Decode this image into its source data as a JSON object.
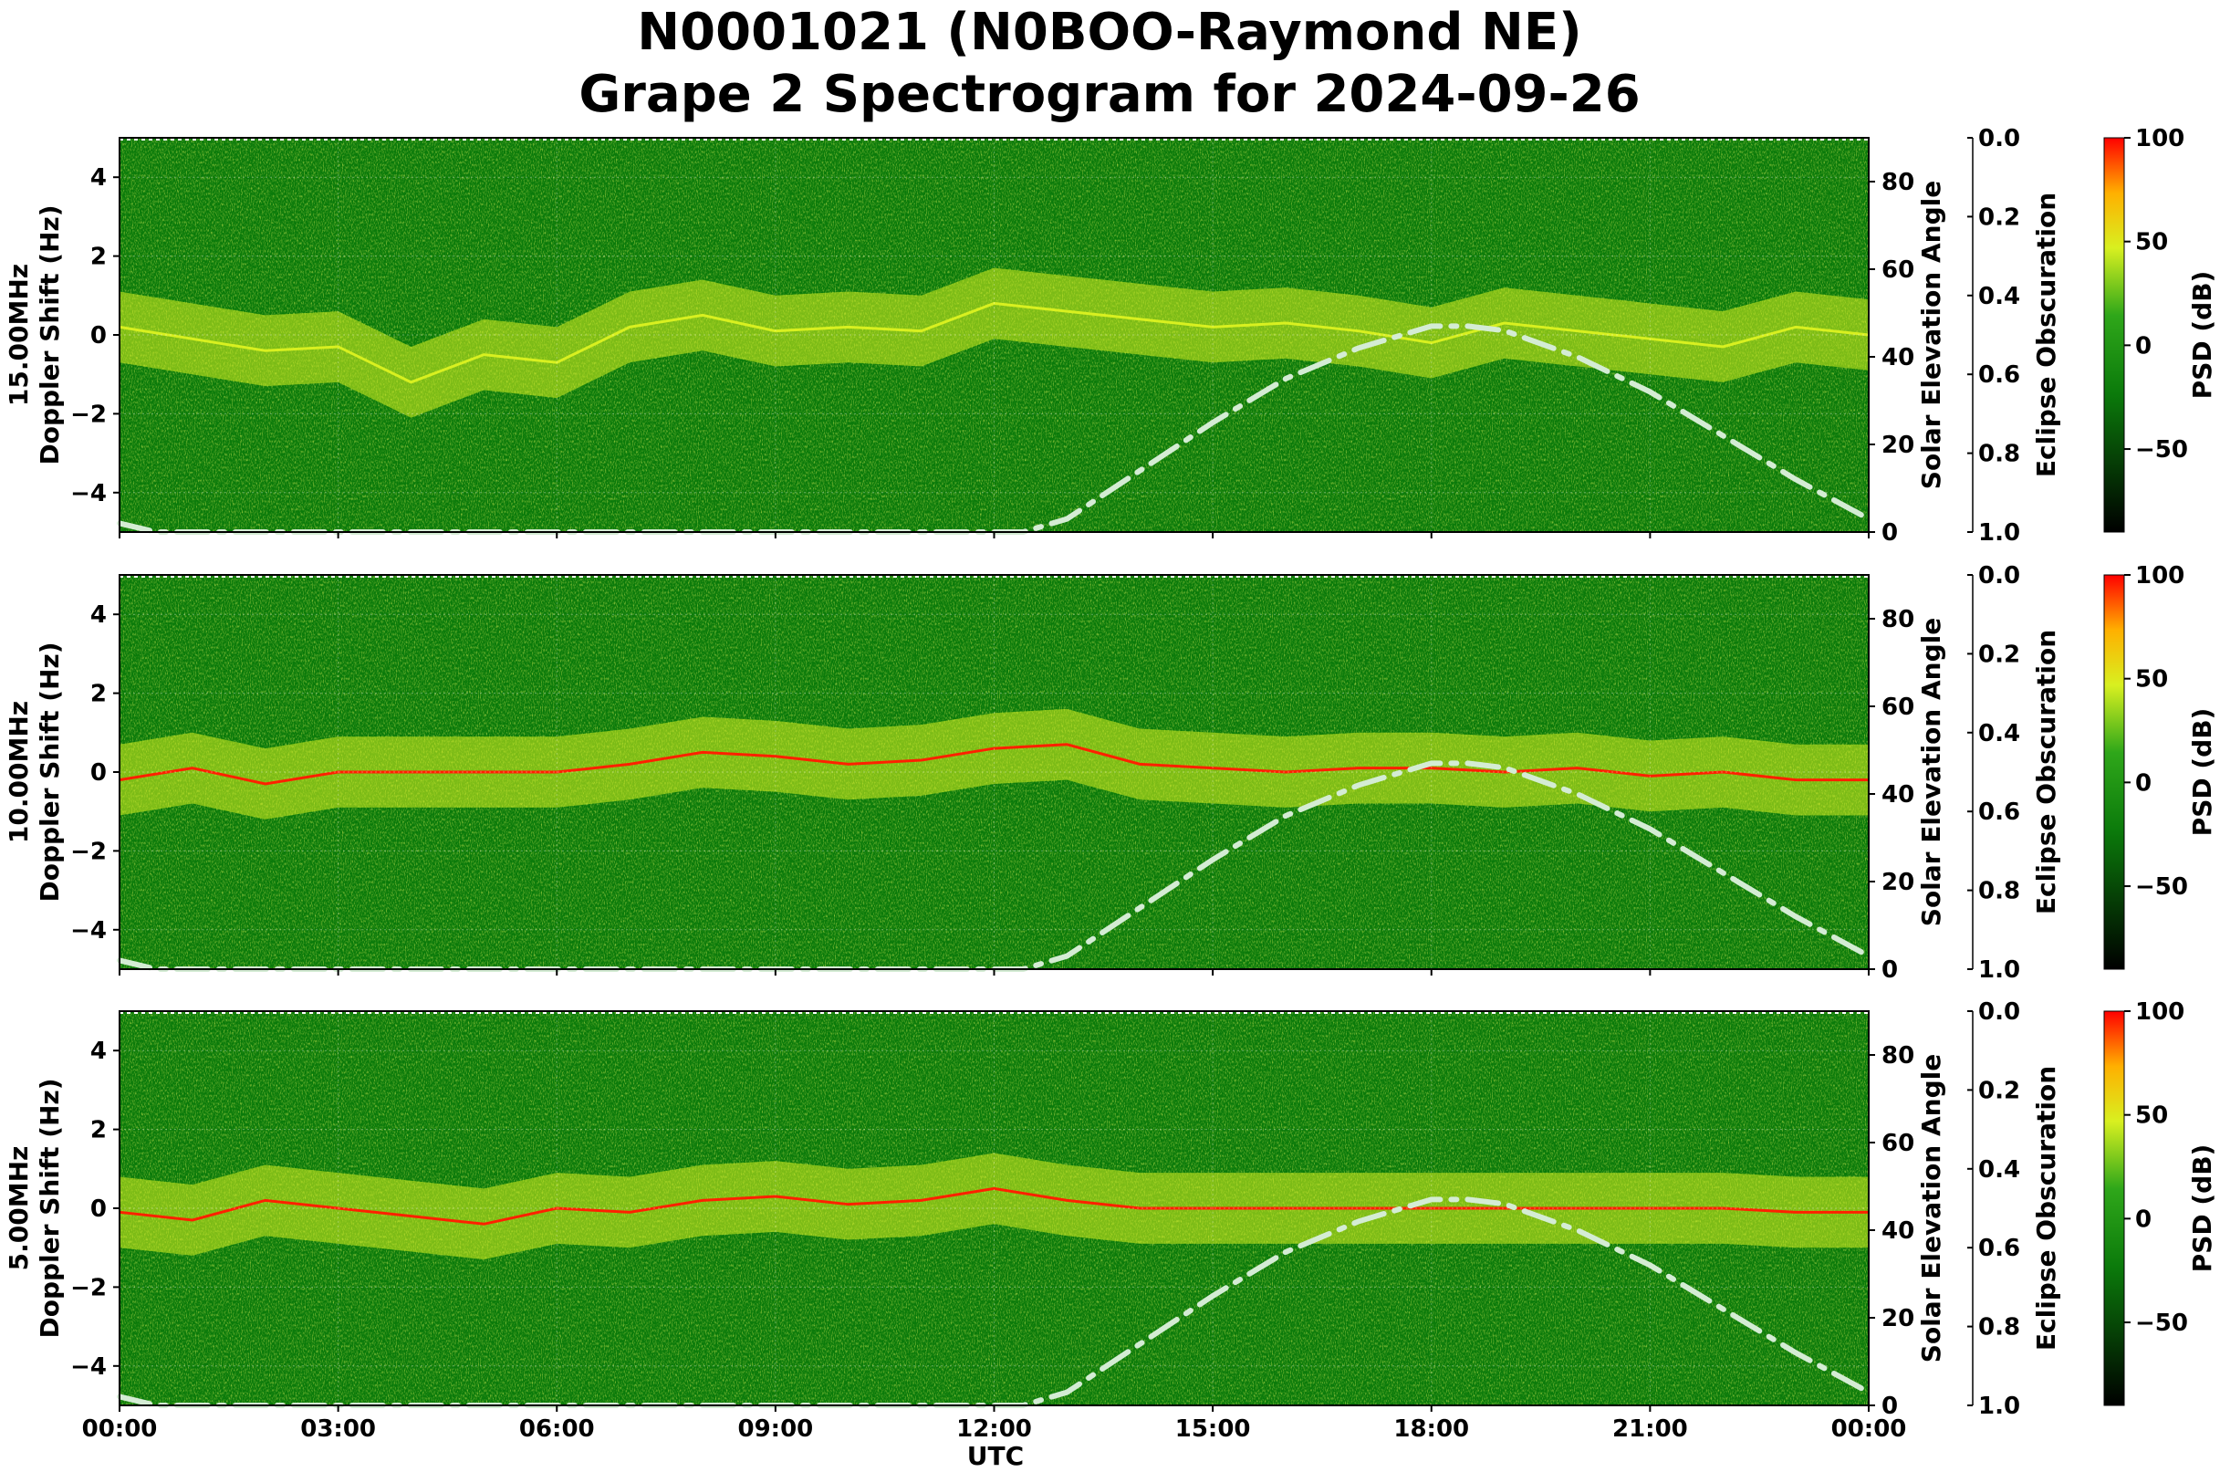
{
  "title_line1": "N0001021 (N0BOO-Raymond NE)",
  "title_line2": "Grape 2 Spectrogram for 2024-09-26",
  "x_axis_label": "UTC",
  "right_axis_label": "Solar Elevation Angle",
  "eclipse_axis_label": "Eclipse Obscuration",
  "colorbar_label": "PSD (dB)",
  "colors": {
    "background_green": "#0a7a0a",
    "signal_yellow": "#d8f020",
    "signal_red": "#ff2000",
    "solar_curve": "#d4ecd4"
  },
  "chart_data": [
    {
      "type": "heatmap",
      "panel": "15.00MHz",
      "ylabel_line1": "15.00MHz",
      "ylabel_line2": "Doppler Shift (Hz)",
      "x_ticks": [
        "00:00",
        "03:00",
        "06:00",
        "09:00",
        "12:00",
        "15:00",
        "18:00",
        "21:00",
        "00:00"
      ],
      "y_ticks": [
        "4",
        "2",
        "0",
        "−2",
        "−4"
      ],
      "y_tick_values": [
        4,
        2,
        0,
        -2,
        -4
      ],
      "ylim": [
        -5,
        5
      ],
      "elev_ticks": [
        "80",
        "60",
        "40",
        "20",
        "0"
      ],
      "elev_tick_values": [
        80,
        60,
        40,
        20,
        0
      ],
      "elev_lim": [
        0,
        90
      ],
      "eclipse_ticks": [
        "0.0",
        "0.2",
        "0.4",
        "0.6",
        "0.8",
        "1.0"
      ],
      "colorbar_ticks": [
        "100",
        "50",
        "0",
        "−50"
      ],
      "colorbar_tick_values": [
        100,
        50,
        0,
        -50
      ],
      "colorbar_lim": [
        -90,
        100
      ],
      "doppler_trace": {
        "x_hours": [
          0,
          1,
          2,
          3,
          4,
          5,
          6,
          7,
          8,
          9,
          10,
          11,
          12,
          13,
          14,
          15,
          16,
          17,
          18,
          19,
          20,
          21,
          22,
          23,
          24
        ],
        "hz": [
          0.2,
          -0.1,
          -0.4,
          -0.3,
          -1.2,
          -0.5,
          -0.7,
          0.2,
          0.5,
          0.1,
          0.2,
          0.1,
          0.8,
          0.6,
          0.4,
          0.2,
          0.3,
          0.1,
          -0.2,
          0.3,
          0.1,
          -0.1,
          -0.3,
          0.2,
          0.0
        ]
      },
      "solar_elevation": {
        "x_hours": [
          0,
          0.5,
          12.4,
          13,
          14,
          15,
          16,
          17,
          18,
          18.5,
          19,
          20,
          21,
          22,
          23,
          24
        ],
        "deg": [
          2,
          0,
          0,
          3,
          14,
          25,
          35,
          42,
          47,
          47,
          46,
          40,
          32,
          22,
          12,
          3
        ]
      }
    },
    {
      "type": "heatmap",
      "panel": "10.00MHz",
      "ylabel_line1": "10.00MHz",
      "ylabel_line2": "Doppler Shift (Hz)",
      "x_ticks": [
        "00:00",
        "03:00",
        "06:00",
        "09:00",
        "12:00",
        "15:00",
        "18:00",
        "21:00",
        "00:00"
      ],
      "y_ticks": [
        "4",
        "2",
        "0",
        "−2",
        "−4"
      ],
      "y_tick_values": [
        4,
        2,
        0,
        -2,
        -4
      ],
      "ylim": [
        -5,
        5
      ],
      "elev_ticks": [
        "80",
        "60",
        "40",
        "20",
        "0"
      ],
      "elev_tick_values": [
        80,
        60,
        40,
        20,
        0
      ],
      "elev_lim": [
        0,
        90
      ],
      "eclipse_ticks": [
        "0.0",
        "0.2",
        "0.4",
        "0.6",
        "0.8",
        "1.0"
      ],
      "colorbar_ticks": [
        "100",
        "50",
        "0",
        "−50"
      ],
      "colorbar_tick_values": [
        100,
        50,
        0,
        -50
      ],
      "colorbar_lim": [
        -90,
        100
      ],
      "doppler_trace": {
        "x_hours": [
          0,
          1,
          2,
          3,
          4,
          5,
          6,
          7,
          8,
          9,
          10,
          11,
          12,
          13,
          14,
          15,
          16,
          17,
          18,
          19,
          20,
          21,
          22,
          23,
          24
        ],
        "hz": [
          -0.2,
          0.1,
          -0.3,
          0.0,
          0.0,
          0.0,
          0.0,
          0.2,
          0.5,
          0.4,
          0.2,
          0.3,
          0.6,
          0.7,
          0.2,
          0.1,
          0.0,
          0.1,
          0.1,
          0.0,
          0.1,
          -0.1,
          0.0,
          -0.2,
          -0.2
        ]
      },
      "solar_elevation": {
        "x_hours": [
          0,
          0.5,
          12.4,
          13,
          14,
          15,
          16,
          17,
          18,
          18.5,
          19,
          20,
          21,
          22,
          23,
          24
        ],
        "deg": [
          2,
          0,
          0,
          3,
          14,
          25,
          35,
          42,
          47,
          47,
          46,
          40,
          32,
          22,
          12,
          3
        ]
      }
    },
    {
      "type": "heatmap",
      "panel": "5.00MHz",
      "ylabel_line1": "5.00MHz",
      "ylabel_line2": "Doppler Shift (Hz)",
      "x_ticks": [
        "00:00",
        "03:00",
        "06:00",
        "09:00",
        "12:00",
        "15:00",
        "18:00",
        "21:00",
        "00:00"
      ],
      "y_ticks": [
        "4",
        "2",
        "0",
        "−2",
        "−4"
      ],
      "y_tick_values": [
        4,
        2,
        0,
        -2,
        -4
      ],
      "ylim": [
        -5,
        5
      ],
      "elev_ticks": [
        "80",
        "60",
        "40",
        "20",
        "0"
      ],
      "elev_tick_values": [
        80,
        60,
        40,
        20,
        0
      ],
      "elev_lim": [
        0,
        90
      ],
      "eclipse_ticks": [
        "0.0",
        "0.2",
        "0.4",
        "0.6",
        "0.8",
        "1.0"
      ],
      "colorbar_ticks": [
        "100",
        "50",
        "0",
        "−50"
      ],
      "colorbar_tick_values": [
        100,
        50,
        0,
        -50
      ],
      "colorbar_lim": [
        -90,
        100
      ],
      "doppler_trace": {
        "x_hours": [
          0,
          1,
          2,
          3,
          4,
          5,
          6,
          7,
          8,
          9,
          10,
          11,
          12,
          13,
          14,
          15,
          16,
          17,
          18,
          19,
          20,
          21,
          22,
          23,
          24
        ],
        "hz": [
          -0.1,
          -0.3,
          0.2,
          0.0,
          -0.2,
          -0.4,
          0.0,
          -0.1,
          0.2,
          0.3,
          0.1,
          0.2,
          0.5,
          0.2,
          0.0,
          0.0,
          0.0,
          0.0,
          0.0,
          0.0,
          0.0,
          0.0,
          0.0,
          -0.1,
          -0.1
        ]
      },
      "solar_elevation": {
        "x_hours": [
          0,
          0.5,
          12.4,
          13,
          14,
          15,
          16,
          17,
          18,
          18.5,
          19,
          20,
          21,
          22,
          23,
          24
        ],
        "deg": [
          2,
          0,
          0,
          3,
          14,
          25,
          35,
          42,
          47,
          47,
          46,
          40,
          32,
          22,
          12,
          3
        ]
      }
    }
  ]
}
